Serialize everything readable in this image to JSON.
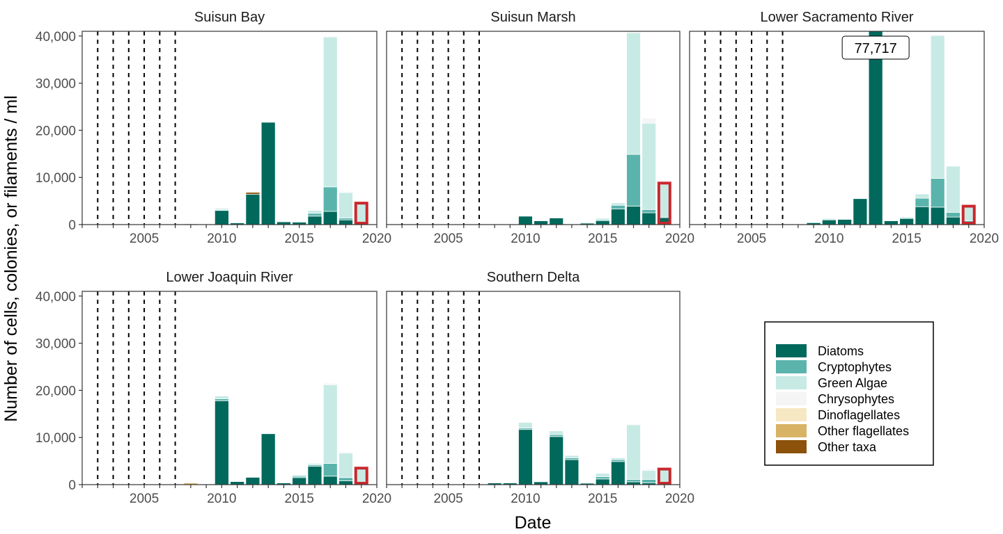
{
  "chart_data": {
    "type": "bar",
    "stacked": true,
    "xlabel": "Date",
    "ylabel": "Number of cells, colonies, or filaments / ml",
    "xlim": [
      2001,
      2020
    ],
    "ylim": [
      0,
      41000
    ],
    "x_ticks": [
      2005,
      2010,
      2015,
      2020
    ],
    "y_ticks": [
      0,
      10000,
      20000,
      30000,
      40000
    ],
    "y_tick_labels": [
      "0",
      "10,000",
      "20,000",
      "30,000",
      "40,000"
    ],
    "no_data_years_dashed": [
      2002,
      2003,
      2004,
      2005,
      2006,
      2007
    ],
    "highlighted_year": 2019,
    "legend_position": "bottom-right",
    "series": [
      {
        "name": "Diatoms",
        "color": "#00695C"
      },
      {
        "name": "Cryptophytes",
        "color": "#5AB4AC"
      },
      {
        "name": "Green Algae",
        "color": "#C7EAE5"
      },
      {
        "name": "Chrysophytes",
        "color": "#F5F5F5"
      },
      {
        "name": "Dinoflagellates",
        "color": "#F6E8C3"
      },
      {
        "name": "Other flagellates",
        "color": "#D8B365"
      },
      {
        "name": "Other taxa",
        "color": "#8C510A"
      }
    ],
    "panels": [
      {
        "title": "Suisun Bay",
        "years": [
          {
            "year": 2008,
            "values": [
              150,
              0,
              0,
              0,
              0,
              0,
              0
            ]
          },
          {
            "year": 2010,
            "values": [
              3000,
              100,
              350,
              0,
              0,
              0,
              0
            ]
          },
          {
            "year": 2011,
            "values": [
              350,
              0,
              0,
              0,
              0,
              0,
              0
            ]
          },
          {
            "year": 2012,
            "values": [
              6450,
              0,
              0,
              0,
              0,
              0,
              400
            ]
          },
          {
            "year": 2013,
            "values": [
              21700,
              0,
              0,
              0,
              0,
              0,
              0
            ]
          },
          {
            "year": 2014,
            "values": [
              600,
              0,
              100,
              0,
              0,
              0,
              0
            ]
          },
          {
            "year": 2015,
            "values": [
              500,
              150,
              150,
              0,
              0,
              0,
              0
            ]
          },
          {
            "year": 2016,
            "values": [
              1800,
              600,
              600,
              0,
              0,
              0,
              0
            ]
          },
          {
            "year": 2017,
            "values": [
              2800,
              5200,
              31800,
              200,
              0,
              0,
              0
            ]
          },
          {
            "year": 2018,
            "values": [
              1000,
              400,
              5400,
              200,
              0,
              0,
              0
            ]
          },
          {
            "year": 2019,
            "values": [
              250,
              0,
              4300,
              0,
              0,
              0,
              0
            ]
          }
        ]
      },
      {
        "title": "Suisun Marsh",
        "years": [
          {
            "year": 2008,
            "values": [
              100,
              0,
              0,
              0,
              0,
              0,
              0
            ]
          },
          {
            "year": 2010,
            "values": [
              1800,
              0,
              100,
              0,
              0,
              0,
              0
            ]
          },
          {
            "year": 2011,
            "values": [
              800,
              0,
              0,
              0,
              0,
              0,
              0
            ]
          },
          {
            "year": 2012,
            "values": [
              1400,
              0,
              0,
              0,
              0,
              0,
              0
            ]
          },
          {
            "year": 2014,
            "values": [
              300,
              0,
              0,
              0,
              0,
              0,
              0
            ]
          },
          {
            "year": 2015,
            "values": [
              850,
              200,
              300,
              0,
              0,
              0,
              0
            ]
          },
          {
            "year": 2016,
            "values": [
              3300,
              800,
              500,
              0,
              0,
              0,
              0
            ]
          },
          {
            "year": 2017,
            "values": [
              3900,
              11000,
              25800,
              300,
              0,
              0,
              0
            ]
          },
          {
            "year": 2018,
            "values": [
              2500,
              700,
              18300,
              1100,
              0,
              0,
              0
            ]
          },
          {
            "year": 2019,
            "values": [
              1500,
              0,
              7300,
              0,
              0,
              0,
              0
            ]
          }
        ]
      },
      {
        "title": "Lower Sacramento River",
        "callout": "77,717",
        "years": [
          {
            "year": 2009,
            "values": [
              400,
              0,
              0,
              0,
              0,
              0,
              0
            ]
          },
          {
            "year": 2010,
            "values": [
              1000,
              0,
              300,
              0,
              0,
              0,
              0
            ]
          },
          {
            "year": 2011,
            "values": [
              1100,
              0,
              0,
              0,
              0,
              0,
              0
            ]
          },
          {
            "year": 2012,
            "values": [
              5500,
              0,
              0,
              0,
              0,
              0,
              0
            ]
          },
          {
            "year": 2013,
            "values": [
              77717,
              0,
              0,
              0,
              0,
              0,
              0
            ]
          },
          {
            "year": 2014,
            "values": [
              800,
              0,
              0,
              0,
              0,
              0,
              0
            ]
          },
          {
            "year": 2015,
            "values": [
              1300,
              0,
              300,
              0,
              0,
              0,
              0
            ]
          },
          {
            "year": 2016,
            "values": [
              3800,
              1800,
              900,
              0,
              0,
              0,
              0
            ]
          },
          {
            "year": 2017,
            "values": [
              3700,
              6100,
              30300,
              200,
              0,
              0,
              0
            ]
          },
          {
            "year": 2018,
            "values": [
              1600,
              1000,
              9800,
              200,
              0,
              0,
              0
            ]
          },
          {
            "year": 2019,
            "values": [
              500,
              300,
              3000,
              100,
              0,
              0,
              0
            ]
          }
        ]
      },
      {
        "title": "Lower Joaquin River",
        "years": [
          {
            "year": 2008,
            "values": [
              0,
              0,
              0,
              0,
              0,
              350,
              0
            ]
          },
          {
            "year": 2010,
            "values": [
              17800,
              400,
              600,
              0,
              0,
              0,
              0
            ]
          },
          {
            "year": 2011,
            "values": [
              650,
              0,
              0,
              0,
              0,
              0,
              0
            ]
          },
          {
            "year": 2012,
            "values": [
              1550,
              0,
              0,
              0,
              0,
              0,
              0
            ]
          },
          {
            "year": 2013,
            "values": [
              10800,
              0,
              0,
              0,
              0,
              0,
              0
            ]
          },
          {
            "year": 2014,
            "values": [
              350,
              0,
              0,
              0,
              0,
              0,
              0
            ]
          },
          {
            "year": 2015,
            "values": [
              1500,
              300,
              300,
              0,
              0,
              0,
              0
            ]
          },
          {
            "year": 2016,
            "values": [
              3900,
              300,
              300,
              0,
              0,
              0,
              0
            ]
          },
          {
            "year": 2017,
            "values": [
              1800,
              2700,
              16700,
              300,
              0,
              0,
              0
            ]
          },
          {
            "year": 2018,
            "values": [
              800,
              700,
              5200,
              300,
              0,
              0,
              0
            ]
          },
          {
            "year": 2019,
            "values": [
              200,
              0,
              3300,
              0,
              0,
              0,
              0
            ]
          }
        ]
      },
      {
        "title": "Southern Delta",
        "years": [
          {
            "year": 2008,
            "values": [
              350,
              0,
              0,
              0,
              0,
              0,
              0
            ]
          },
          {
            "year": 2009,
            "values": [
              350,
              0,
              0,
              0,
              0,
              0,
              0
            ]
          },
          {
            "year": 2010,
            "values": [
              11700,
              300,
              1200,
              0,
              0,
              0,
              0
            ]
          },
          {
            "year": 2011,
            "values": [
              600,
              0,
              0,
              0,
              0,
              0,
              0
            ]
          },
          {
            "year": 2012,
            "values": [
              10200,
              400,
              800,
              0,
              0,
              0,
              0
            ]
          },
          {
            "year": 2013,
            "values": [
              5300,
              400,
              500,
              0,
              0,
              0,
              0
            ]
          },
          {
            "year": 2014,
            "values": [
              300,
              0,
              0,
              0,
              0,
              0,
              0
            ]
          },
          {
            "year": 2015,
            "values": [
              1200,
              500,
              700,
              0,
              0,
              0,
              0
            ]
          },
          {
            "year": 2016,
            "values": [
              4900,
              400,
              400,
              0,
              0,
              0,
              0
            ]
          },
          {
            "year": 2017,
            "values": [
              600,
              500,
              11600,
              200,
              0,
              0,
              0
            ]
          },
          {
            "year": 2018,
            "values": [
              400,
              700,
              1900,
              300,
              0,
              0,
              0
            ]
          },
          {
            "year": 2019,
            "values": [
              300,
              0,
              3000,
              0,
              0,
              0,
              0
            ]
          }
        ]
      }
    ]
  }
}
